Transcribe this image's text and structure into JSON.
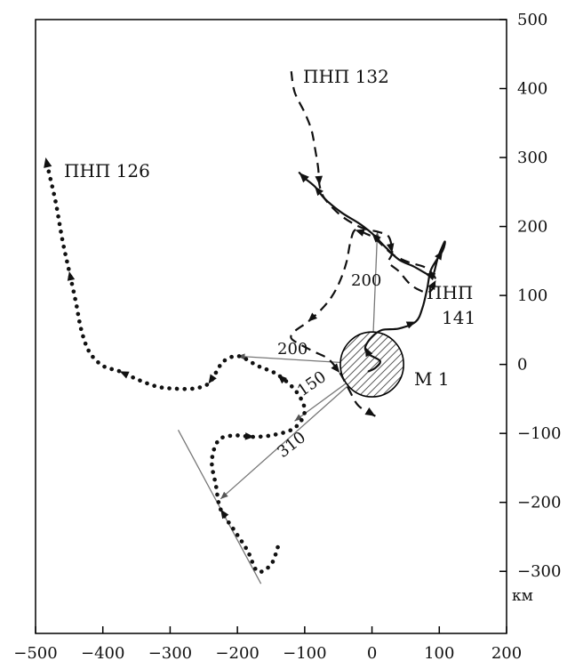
{
  "axes": {
    "x_ticks": [
      {
        "value": -500,
        "label": "−500"
      },
      {
        "value": -400,
        "label": "−400"
      },
      {
        "value": -300,
        "label": "−300"
      },
      {
        "value": -200,
        "label": "−200"
      },
      {
        "value": -100,
        "label": "−100"
      },
      {
        "value": 0,
        "label": "0"
      },
      {
        "value": 100,
        "label": "100"
      },
      {
        "value": 200,
        "label": "200"
      }
    ],
    "y_ticks": [
      {
        "value": 500,
        "label": "500"
      },
      {
        "value": 400,
        "label": "400"
      },
      {
        "value": 300,
        "label": "300"
      },
      {
        "value": 200,
        "label": "200"
      },
      {
        "value": 100,
        "label": "100"
      },
      {
        "value": 0,
        "label": "0"
      },
      {
        "value": -100,
        "label": "−100"
      },
      {
        "value": -200,
        "label": "−200"
      },
      {
        "value": -300,
        "label": "−300"
      }
    ],
    "x_range": [
      -500,
      200
    ],
    "y_range": [
      -390,
      500
    ],
    "unit_label": "км"
  },
  "tracks": {
    "pnp126": {
      "label": "ПНП 126",
      "style": "dotted",
      "points": [
        [
          -140,
          -265
        ],
        [
          -150,
          -290
        ],
        [
          -170,
          -300
        ],
        [
          -185,
          -270
        ],
        [
          -205,
          -240
        ],
        [
          -225,
          -210
        ],
        [
          -232,
          -175
        ],
        [
          -238,
          -140
        ],
        [
          -228,
          -110
        ],
        [
          -205,
          -103
        ],
        [
          -175,
          -105
        ],
        [
          -145,
          -102
        ],
        [
          -115,
          -92
        ],
        [
          -100,
          -68
        ],
        [
          -112,
          -40
        ],
        [
          -140,
          -15
        ],
        [
          -170,
          -2
        ],
        [
          -198,
          12
        ],
        [
          -220,
          5
        ],
        [
          -232,
          -12
        ],
        [
          -243,
          -28
        ],
        [
          -265,
          -35
        ],
        [
          -295,
          -35
        ],
        [
          -320,
          -32
        ],
        [
          -348,
          -22
        ],
        [
          -375,
          -10
        ],
        [
          -400,
          -2
        ],
        [
          -420,
          18
        ],
        [
          -432,
          50
        ],
        [
          -440,
          90
        ],
        [
          -450,
          135
        ],
        [
          -460,
          180
        ],
        [
          -470,
          235
        ],
        [
          -480,
          278
        ],
        [
          -485,
          300
        ]
      ]
    },
    "pnp132": {
      "label": "ПНП 132",
      "style": "dashed",
      "points": [
        [
          -120,
          425
        ],
        [
          -115,
          395
        ],
        [
          -100,
          365
        ],
        [
          -90,
          340
        ],
        [
          -85,
          315
        ],
        [
          -80,
          285
        ],
        [
          -78,
          260
        ],
        [
          -70,
          240
        ],
        [
          -45,
          215
        ],
        [
          -15,
          198
        ],
        [
          10,
          192
        ],
        [
          25,
          185
        ],
        [
          30,
          162
        ],
        [
          25,
          148
        ],
        [
          40,
          135
        ],
        [
          55,
          118
        ],
        [
          70,
          108
        ],
        [
          85,
          105
        ],
        [
          95,
          122
        ],
        [
          80,
          140
        ],
        [
          55,
          148
        ],
        [
          30,
          160
        ],
        [
          5,
          182
        ],
        [
          -10,
          190
        ],
        [
          -25,
          195
        ],
        [
          -32,
          178
        ],
        [
          -38,
          148
        ],
        [
          -48,
          120
        ],
        [
          -60,
          98
        ],
        [
          -75,
          80
        ],
        [
          -95,
          62
        ],
        [
          -115,
          48
        ],
        [
          -120,
          38
        ],
        [
          -105,
          28
        ],
        [
          -85,
          18
        ],
        [
          -65,
          8
        ],
        [
          -48,
          -12
        ],
        [
          -35,
          -35
        ],
        [
          -20,
          -60
        ],
        [
          5,
          -75
        ]
      ]
    },
    "pnp141": {
      "label": "ПНП 141",
      "style": "solid",
      "points": [
        [
          -5,
          -10
        ],
        [
          5,
          -5
        ],
        [
          12,
          5
        ],
        [
          -5,
          15
        ],
        [
          -10,
          25
        ],
        [
          0,
          40
        ],
        [
          15,
          50
        ],
        [
          40,
          52
        ],
        [
          65,
          62
        ],
        [
          75,
          82
        ],
        [
          82,
          110
        ],
        [
          88,
          138
        ],
        [
          105,
          165
        ],
        [
          108,
          178
        ],
        [
          98,
          155
        ],
        [
          90,
          128
        ],
        [
          80,
          132
        ],
        [
          62,
          142
        ],
        [
          40,
          152
        ],
        [
          20,
          170
        ],
        [
          0,
          190
        ],
        [
          -20,
          205
        ],
        [
          -45,
          220
        ],
        [
          -70,
          240
        ],
        [
          -85,
          258
        ],
        [
          -100,
          270
        ],
        [
          -108,
          278
        ]
      ]
    }
  },
  "marker": {
    "label": "М 1",
    "center": [
      0,
      0
    ],
    "radius_km": 47
  },
  "distance_lines": [
    {
      "label": "200",
      "from": [
        0,
        0
      ],
      "to": [
        -200,
        12
      ]
    },
    {
      "label": "200",
      "from": [
        0,
        0
      ],
      "to": [
        8,
        192
      ]
    },
    {
      "label": "150",
      "from": [
        0,
        0
      ],
      "to": [
        -115,
        -82
      ]
    },
    {
      "label": "310",
      "from": [
        0,
        0
      ],
      "to": [
        -225,
        -195
      ]
    }
  ],
  "tangent_line": {
    "from": [
      -288,
      -95
    ],
    "to": [
      -165,
      -318
    ]
  }
}
